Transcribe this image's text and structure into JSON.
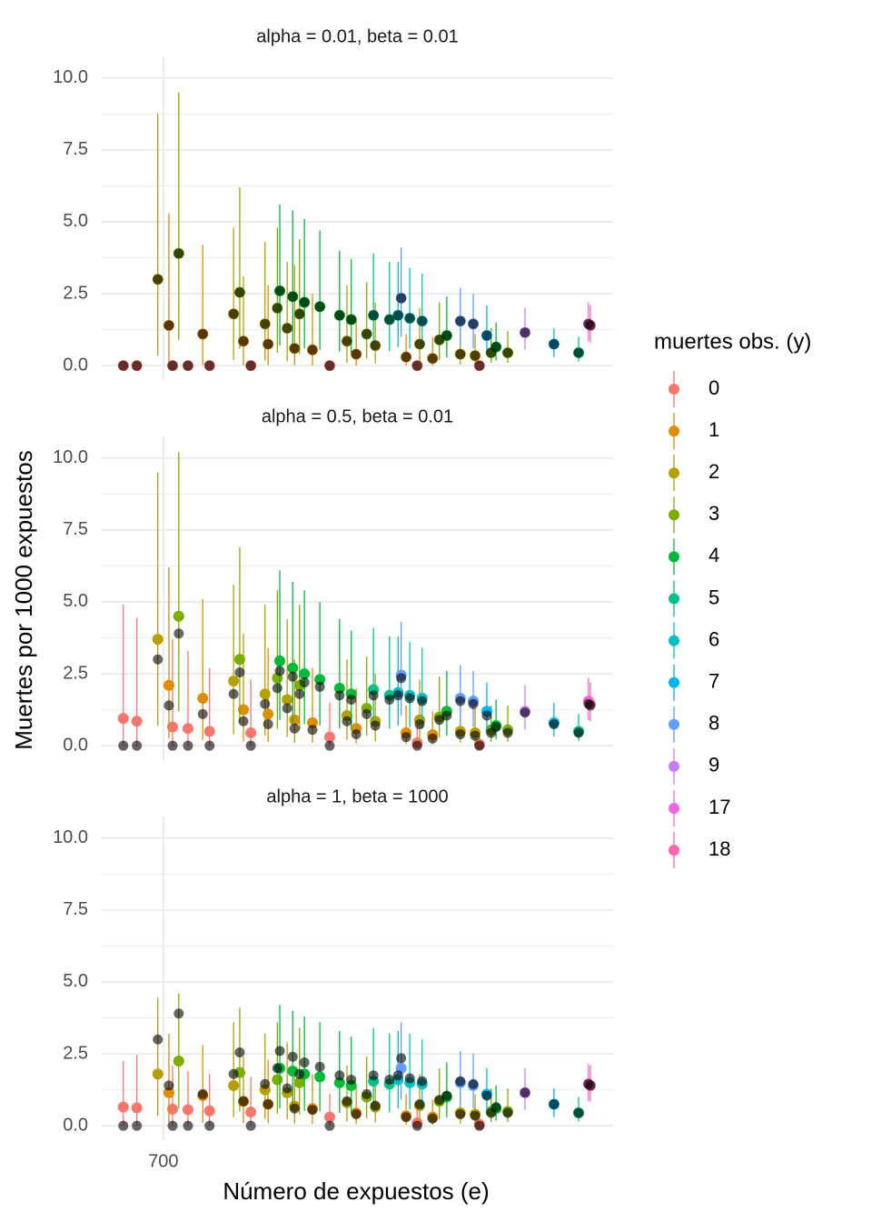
{
  "x_label": "Número de expuestos (e)",
  "y_label": "Muertes por 1000 expuestos",
  "legend_title": "muertes obs. (y)",
  "groups": [
    {
      "name": "0",
      "color": "#F8766D",
      "x": [
        635,
        657,
        715,
        740,
        775,
        842,
        970,
        1112,
        1213
      ],
      "observed": [
        0,
        0,
        0,
        0,
        0,
        0,
        0,
        0,
        0
      ]
    },
    {
      "name": "1",
      "color": "#DE8C00",
      "x": [
        709,
        764,
        830,
        870,
        913,
        942,
        1013,
        1094,
        1137
      ],
      "observed": [
        1.4,
        1.1,
        0.85,
        0.75,
        0.6,
        0.55,
        0.4,
        0.3,
        0.25
      ]
    },
    {
      "name": "2",
      "color": "#B79F00",
      "x": [
        691,
        814,
        865,
        901,
        998,
        1044,
        1116,
        1182,
        1206
      ],
      "observed": [
        3.0,
        1.8,
        1.45,
        1.3,
        0.85,
        0.7,
        0.75,
        0.4,
        0.35
      ]
    },
    {
      "name": "3",
      "color": "#7CAE00",
      "x": [
        725,
        824,
        885,
        921,
        1030,
        1148,
        1232,
        1259
      ],
      "observed": [
        3.9,
        2.55,
        2.0,
        1.8,
        1.1,
        0.9,
        0.45,
        0.45
      ]
    },
    {
      "name": "4",
      "color": "#00BA38",
      "x": [
        889,
        910,
        929,
        954,
        986,
        1005,
        1160,
        1240
      ],
      "observed": [
        2.6,
        2.4,
        2.2,
        2.05,
        1.75,
        1.6,
        1.05,
        0.65
      ]
    },
    {
      "name": "5",
      "color": "#00C08B",
      "x": [
        1041,
        1067,
        1374
      ],
      "observed": [
        1.75,
        1.6,
        0.45
      ]
    },
    {
      "name": "6",
      "color": "#00BFC4",
      "x": [
        1081,
        1100,
        1120
      ],
      "observed": [
        1.75,
        1.65,
        1.55
      ]
    },
    {
      "name": "7",
      "color": "#00B4F0",
      "x": [
        1225,
        1334
      ],
      "observed": [
        1.05,
        0.75
      ]
    },
    {
      "name": "8",
      "color": "#619CFF",
      "x": [
        1086,
        1182,
        1203
      ],
      "observed": [
        2.35,
        1.55,
        1.45
      ]
    },
    {
      "name": "9",
      "color": "#C77CFF",
      "x": [
        1287
      ],
      "observed": [
        1.15
      ]
    },
    {
      "name": "17",
      "color": "#F564E3",
      "x": [
        1390
      ],
      "observed": [
        1.45
      ]
    },
    {
      "name": "18",
      "color": "#FF64B0",
      "x": [
        1393
      ],
      "observed": [
        1.4
      ]
    }
  ],
  "chart_data": [
    {
      "type": "scatter",
      "title": "alpha = 0.01, beta = 0.01",
      "xlim": [
        600,
        1430
      ],
      "xticks": [
        700
      ],
      "ylim": [
        -0.5,
        10.75
      ],
      "yticks": [
        {
          "value": 0,
          "label": "0.0"
        },
        {
          "value": 2.5,
          "label": "2.5"
        },
        {
          "value": 5,
          "label": "5.0"
        },
        {
          "value": 7.5,
          "label": "7.5"
        },
        {
          "value": 10,
          "label": "10.0"
        }
      ],
      "grid": true,
      "series": [
        {
          "values": [
            0,
            0,
            0,
            0,
            0,
            0,
            0,
            0,
            0
          ],
          "lower": [
            0,
            0,
            0,
            0,
            0,
            0,
            0,
            0,
            0
          ],
          "upper": [
            0,
            0,
            0,
            0,
            0,
            0,
            0,
            0,
            0
          ]
        },
        {
          "values": [
            1.4,
            1.1,
            0.85,
            0.75,
            0.6,
            0.55,
            0.4,
            0.3,
            0.25
          ],
          "lower": [
            0.03,
            0.03,
            0.02,
            0.02,
            0.02,
            0.02,
            0.01,
            0.01,
            0.01
          ],
          "upper": [
            5.3,
            4.2,
            3.1,
            2.8,
            3.5,
            2.5,
            1.6,
            1.1,
            1.0
          ]
        },
        {
          "values": [
            3.0,
            1.8,
            1.45,
            1.3,
            0.85,
            0.7,
            0.75,
            0.4,
            0.35
          ],
          "lower": [
            0.35,
            0.2,
            0.18,
            0.15,
            0.1,
            0.08,
            0.09,
            0.05,
            0.04
          ],
          "upper": [
            8.75,
            4.8,
            4.3,
            3.6,
            2.8,
            2.2,
            2.0,
            1.3,
            1.1
          ]
        },
        {
          "values": [
            3.9,
            2.55,
            2.0,
            1.8,
            1.1,
            0.9,
            0.45,
            0.45
          ],
          "lower": [
            0.9,
            0.6,
            0.45,
            0.4,
            0.25,
            0.2,
            0.1,
            0.1
          ],
          "upper": [
            9.5,
            6.2,
            4.8,
            4.4,
            2.9,
            2.2,
            1.3,
            1.2
          ]
        },
        {
          "values": [
            2.6,
            2.4,
            2.2,
            2.05,
            1.75,
            1.6,
            1.05,
            0.65
          ],
          "lower": [
            0.7,
            0.65,
            0.6,
            0.55,
            0.48,
            0.44,
            0.28,
            0.18
          ],
          "upper": [
            5.6,
            5.4,
            5.1,
            4.7,
            4.0,
            3.7,
            2.4,
            1.5
          ]
        },
        {
          "values": [
            1.75,
            1.6,
            0.45
          ],
          "lower": [
            0.6,
            0.5,
            0.15
          ],
          "upper": [
            3.9,
            3.6,
            1.0
          ]
        },
        {
          "values": [
            1.75,
            1.65,
            1.55
          ],
          "lower": [
            0.65,
            0.6,
            0.57
          ],
          "upper": [
            3.6,
            3.4,
            3.2
          ]
        },
        {
          "values": [
            1.05,
            0.75
          ],
          "lower": [
            0.4,
            0.3
          ],
          "upper": [
            2.1,
            1.3
          ]
        },
        {
          "values": [
            2.35,
            1.55,
            1.45
          ],
          "lower": [
            1.0,
            0.65,
            0.6
          ],
          "upper": [
            4.1,
            2.7,
            2.5
          ]
        },
        {
          "values": [
            1.15
          ],
          "lower": [
            0.55
          ],
          "upper": [
            2.0
          ]
        },
        {
          "values": [
            1.45
          ],
          "lower": [
            0.85
          ],
          "upper": [
            2.2
          ]
        },
        {
          "values": [
            1.4
          ],
          "lower": [
            0.8
          ],
          "upper": [
            2.1
          ]
        }
      ]
    },
    {
      "type": "scatter",
      "title": "alpha = 0.5, beta = 0.01",
      "xlim": [
        600,
        1430
      ],
      "xticks": [
        700
      ],
      "ylim": [
        -0.5,
        10.75
      ],
      "yticks": [
        {
          "value": 0,
          "label": "0.0"
        },
        {
          "value": 2.5,
          "label": "2.5"
        },
        {
          "value": 5,
          "label": "5.0"
        },
        {
          "value": 7.5,
          "label": "7.5"
        },
        {
          "value": 10,
          "label": "10.0"
        }
      ],
      "grid": true,
      "series": [
        {
          "values": [
            0.95,
            0.85,
            0.65,
            0.6,
            0.5,
            0.45,
            0.3,
            0.1,
            0.05
          ],
          "lower": [
            0,
            0,
            0,
            0,
            0,
            0,
            0,
            0,
            0
          ],
          "upper": [
            4.9,
            4.45,
            3.7,
            3.3,
            2.7,
            2.3,
            1.5,
            0.9,
            0.4
          ]
        },
        {
          "values": [
            2.1,
            1.65,
            1.25,
            1.1,
            0.9,
            0.8,
            0.6,
            0.45,
            0.38
          ],
          "lower": [
            0.25,
            0.2,
            0.15,
            0.13,
            0.1,
            0.1,
            0.07,
            0.05,
            0.05
          ],
          "upper": [
            6.2,
            5.1,
            3.9,
            3.4,
            3.0,
            2.7,
            2.0,
            1.4,
            1.2
          ]
        },
        {
          "values": [
            3.7,
            2.25,
            1.8,
            1.6,
            1.05,
            0.85,
            0.9,
            0.5,
            0.45
          ],
          "lower": [
            0.7,
            0.4,
            0.35,
            0.3,
            0.2,
            0.15,
            0.17,
            0.1,
            0.08
          ],
          "upper": [
            9.5,
            5.6,
            4.9,
            4.4,
            3.0,
            2.5,
            2.3,
            1.5,
            1.3
          ]
        },
        {
          "values": [
            4.5,
            3.0,
            2.35,
            2.1,
            1.3,
            1.0,
            0.55,
            0.55
          ],
          "lower": [
            1.2,
            0.8,
            0.6,
            0.55,
            0.35,
            0.28,
            0.14,
            0.14
          ],
          "upper": [
            10.2,
            6.9,
            5.4,
            4.9,
            3.1,
            2.4,
            1.4,
            1.4
          ]
        },
        {
          "values": [
            2.95,
            2.7,
            2.5,
            2.3,
            2.0,
            1.8,
            1.2,
            0.7
          ],
          "lower": [
            0.9,
            0.8,
            0.75,
            0.7,
            0.6,
            0.55,
            0.35,
            0.22
          ],
          "upper": [
            6.1,
            5.7,
            5.4,
            5.0,
            4.4,
            4.0,
            2.6,
            1.6
          ]
        },
        {
          "values": [
            1.95,
            1.75,
            0.5
          ],
          "lower": [
            0.7,
            0.6,
            0.17
          ],
          "upper": [
            4.1,
            3.8,
            1.1
          ]
        },
        {
          "values": [
            1.85,
            1.75,
            1.65
          ],
          "lower": [
            0.7,
            0.65,
            0.6
          ],
          "upper": [
            3.8,
            3.6,
            3.4
          ]
        },
        {
          "values": [
            1.2,
            0.8
          ],
          "lower": [
            0.45,
            0.32
          ],
          "upper": [
            2.2,
            1.5
          ]
        },
        {
          "values": [
            2.45,
            1.65,
            1.55
          ],
          "lower": [
            1.05,
            0.7,
            0.65
          ],
          "upper": [
            4.3,
            2.8,
            2.6
          ]
        },
        {
          "values": [
            1.2
          ],
          "lower": [
            0.56
          ],
          "upper": [
            2.1
          ]
        },
        {
          "values": [
            1.55
          ],
          "lower": [
            0.9
          ],
          "upper": [
            2.35
          ]
        },
        {
          "values": [
            1.45
          ],
          "lower": [
            0.85
          ],
          "upper": [
            2.2
          ]
        }
      ]
    },
    {
      "type": "scatter",
      "title": "alpha = 1, beta = 1000",
      "xlim": [
        600,
        1430
      ],
      "xticks": [
        700
      ],
      "ylim": [
        -0.5,
        10.75
      ],
      "yticks": [
        {
          "value": 0,
          "label": "0.0"
        },
        {
          "value": 2.5,
          "label": "2.5"
        },
        {
          "value": 5,
          "label": "5.0"
        },
        {
          "value": 7.5,
          "label": "7.5"
        },
        {
          "value": 10,
          "label": "10.0"
        }
      ],
      "grid": true,
      "series": [
        {
          "values": [
            0.65,
            0.62,
            0.58,
            0.56,
            0.52,
            0.48,
            0.3,
            0.1,
            0.05
          ],
          "lower": [
            0.02,
            0.02,
            0.02,
            0.02,
            0.02,
            0.02,
            0.02,
            0.02,
            0.02
          ],
          "upper": [
            2.25,
            2.45,
            2.1,
            1.9,
            1.8,
            1.7,
            1.1,
            0.6,
            0.3
          ]
        },
        {
          "values": [
            1.15,
            1.05,
            0.85,
            0.75,
            0.68,
            0.6,
            0.45,
            0.35,
            0.3
          ],
          "lower": [
            0.12,
            0.1,
            0.09,
            0.08,
            0.07,
            0.06,
            0.05,
            0.04,
            0.03
          ],
          "upper": [
            3.2,
            2.8,
            2.4,
            2.3,
            2.0,
            1.8,
            1.4,
            1.1,
            0.9
          ]
        },
        {
          "values": [
            1.8,
            1.4,
            1.25,
            1.15,
            0.8,
            0.65,
            0.7,
            0.45,
            0.4
          ],
          "lower": [
            0.35,
            0.3,
            0.25,
            0.22,
            0.15,
            0.12,
            0.13,
            0.08,
            0.07
          ],
          "upper": [
            4.45,
            3.6,
            3.2,
            2.9,
            2.1,
            1.7,
            1.8,
            1.2,
            1.1
          ]
        },
        {
          "values": [
            2.25,
            1.85,
            1.6,
            1.5,
            1.0,
            0.85,
            0.5,
            0.5
          ],
          "lower": [
            0.6,
            0.5,
            0.42,
            0.4,
            0.27,
            0.22,
            0.13,
            0.13
          ],
          "upper": [
            4.6,
            4.1,
            3.6,
            3.4,
            2.4,
            2.0,
            1.3,
            1.3
          ]
        },
        {
          "values": [
            2.0,
            1.9,
            1.8,
            1.7,
            1.5,
            1.4,
            1.0,
            0.6
          ],
          "lower": [
            0.6,
            0.55,
            0.52,
            0.5,
            0.45,
            0.42,
            0.3,
            0.18
          ],
          "upper": [
            4.2,
            4.0,
            3.8,
            3.6,
            3.3,
            3.1,
            2.2,
            1.4
          ]
        },
        {
          "values": [
            1.55,
            1.45,
            0.45
          ],
          "lower": [
            0.5,
            0.47,
            0.15
          ],
          "upper": [
            3.4,
            3.2,
            1.0
          ]
        },
        {
          "values": [
            1.6,
            1.5,
            1.45
          ],
          "lower": [
            0.6,
            0.56,
            0.55
          ],
          "upper": [
            3.3,
            3.2,
            3.0
          ]
        },
        {
          "values": [
            1.1,
            0.75
          ],
          "lower": [
            0.42,
            0.3
          ],
          "upper": [
            2.0,
            1.3
          ]
        },
        {
          "values": [
            2.0,
            1.5,
            1.4
          ],
          "lower": [
            0.9,
            0.65,
            0.6
          ],
          "upper": [
            3.6,
            2.6,
            2.5
          ]
        },
        {
          "values": [
            1.15
          ],
          "lower": [
            0.55
          ],
          "upper": [
            2.0
          ]
        },
        {
          "values": [
            1.45
          ],
          "lower": [
            0.85
          ],
          "upper": [
            2.15
          ]
        },
        {
          "values": [
            1.4
          ],
          "lower": [
            0.85
          ],
          "upper": [
            2.1
          ]
        }
      ]
    }
  ]
}
